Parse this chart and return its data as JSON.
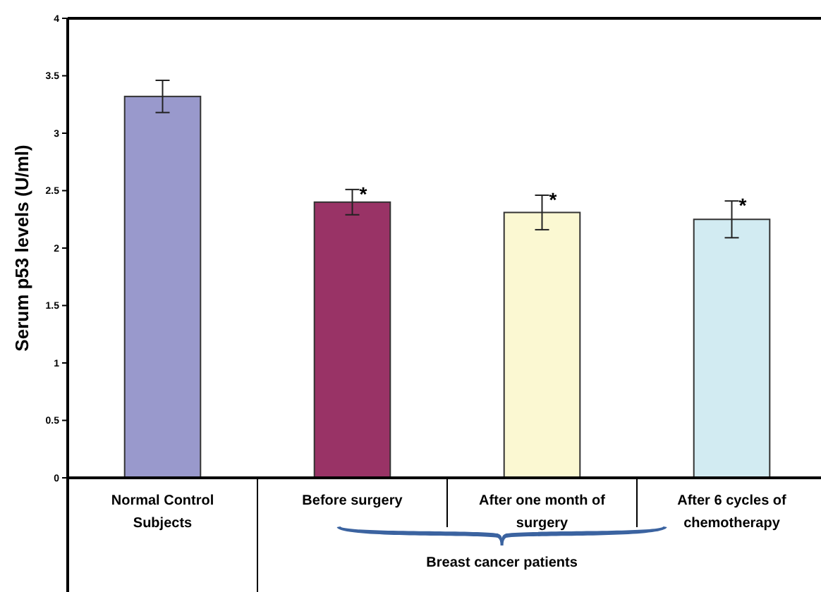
{
  "chart_data": {
    "type": "bar",
    "categories": [
      "Normal Control Subjects",
      "Before surgery",
      "After one month of surgery",
      "After 6 cycles of chemotherapy"
    ],
    "values": [
      3.32,
      2.4,
      2.31,
      2.25
    ],
    "errors": [
      0.14,
      0.11,
      0.15,
      0.16
    ],
    "colors": [
      "#9999cc",
      "#993366",
      "#fbf8d2",
      "#d2ebf2"
    ],
    "ylabel": "Serum p53 levels (U/ml)",
    "ylim": [
      0,
      4
    ],
    "yticks": [
      0,
      0.5,
      1,
      1.5,
      2,
      2.5,
      3,
      3.5,
      4
    ],
    "annotations": [
      {
        "text": "*",
        "x": "Before surgery",
        "y": 2.51
      },
      {
        "text": "*",
        "x": "After one month of surgery",
        "y": 2.46
      },
      {
        "text": "*",
        "x": "After 6 cycles of chemotherapy",
        "y": 2.41
      },
      "Breast cancer patients"
    ]
  }
}
